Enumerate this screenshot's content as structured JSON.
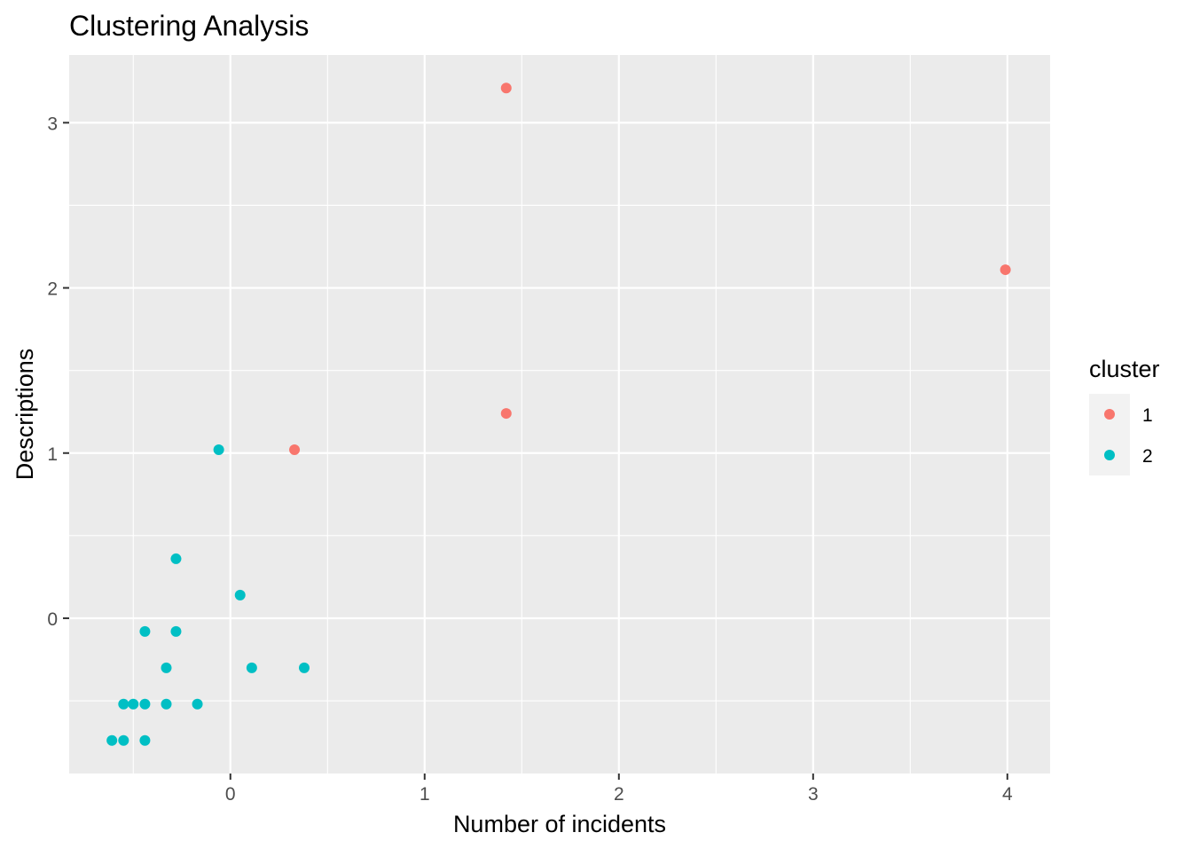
{
  "chart_data": {
    "type": "scatter",
    "title": "Clustering Analysis",
    "xlabel": "Number of incidents",
    "ylabel": "Descriptions",
    "xlim": [
      -0.83,
      4.22
    ],
    "ylim": [
      -0.94,
      3.41
    ],
    "x_ticks": [
      0,
      1,
      2,
      3,
      4
    ],
    "x_tick_labels": [
      "0",
      "1",
      "2",
      "3",
      "4"
    ],
    "y_ticks": [
      0,
      1,
      2,
      3
    ],
    "y_tick_labels": [
      "0",
      "1",
      "2",
      "3"
    ],
    "grid": true,
    "legend": {
      "title": "cluster",
      "position": "right",
      "entries": [
        {
          "label": "1",
          "color": "#F8766D"
        },
        {
          "label": "2",
          "color": "#00BFC4"
        }
      ]
    },
    "series": [
      {
        "name": "1",
        "color": "#F8766D",
        "points": [
          {
            "x": 1.42,
            "y": 3.21
          },
          {
            "x": 3.99,
            "y": 2.11
          },
          {
            "x": 1.42,
            "y": 1.24
          },
          {
            "x": 0.33,
            "y": 1.02
          }
        ]
      },
      {
        "name": "2",
        "color": "#00BFC4",
        "points": [
          {
            "x": -0.06,
            "y": 1.02
          },
          {
            "x": -0.28,
            "y": 0.36
          },
          {
            "x": 0.05,
            "y": 0.14
          },
          {
            "x": -0.44,
            "y": -0.08
          },
          {
            "x": -0.28,
            "y": -0.08
          },
          {
            "x": -0.33,
            "y": -0.3
          },
          {
            "x": 0.11,
            "y": -0.3
          },
          {
            "x": 0.38,
            "y": -0.3
          },
          {
            "x": -0.55,
            "y": -0.52
          },
          {
            "x": -0.5,
            "y": -0.52
          },
          {
            "x": -0.44,
            "y": -0.52
          },
          {
            "x": -0.33,
            "y": -0.52
          },
          {
            "x": -0.17,
            "y": -0.52
          },
          {
            "x": -0.61,
            "y": -0.74
          },
          {
            "x": -0.55,
            "y": -0.74
          },
          {
            "x": -0.44,
            "y": -0.74
          }
        ]
      }
    ]
  }
}
